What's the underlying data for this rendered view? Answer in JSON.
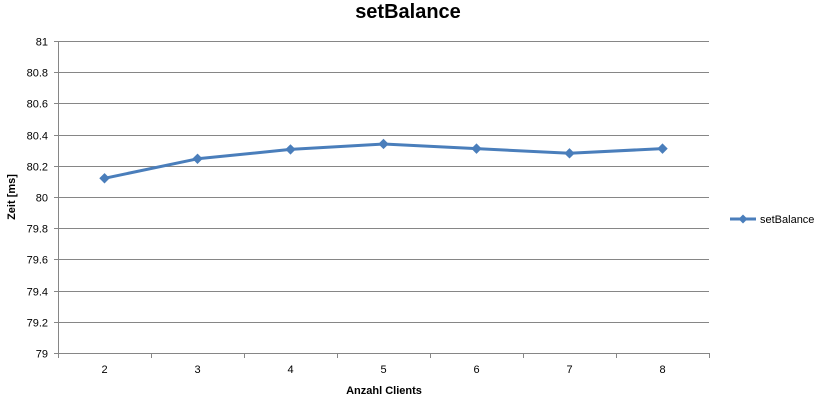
{
  "chart_data": {
    "type": "line",
    "title": "setBalance",
    "xlabel": "Anzahl Clients",
    "ylabel": "Zeit [ms]",
    "categories": [
      "2",
      "3",
      "4",
      "5",
      "6",
      "7",
      "8"
    ],
    "ylim": [
      79,
      81
    ],
    "yticks": [
      79,
      79.2,
      79.4,
      79.6,
      79.8,
      80,
      80.2,
      80.4,
      80.6,
      80.8,
      81
    ],
    "ytick_labels": [
      "79",
      "79.2",
      "79.4",
      "79.6",
      "79.8",
      "80",
      "80.2",
      "80.4",
      "80.6",
      "80.8",
      "81"
    ],
    "grid": true,
    "legend": "right",
    "series": [
      {
        "name": "setBalance",
        "color": "#4a7ebb",
        "marker": "diamond",
        "values": [
          80.12,
          80.245,
          80.305,
          80.34,
          80.31,
          80.28,
          80.31
        ]
      }
    ]
  }
}
